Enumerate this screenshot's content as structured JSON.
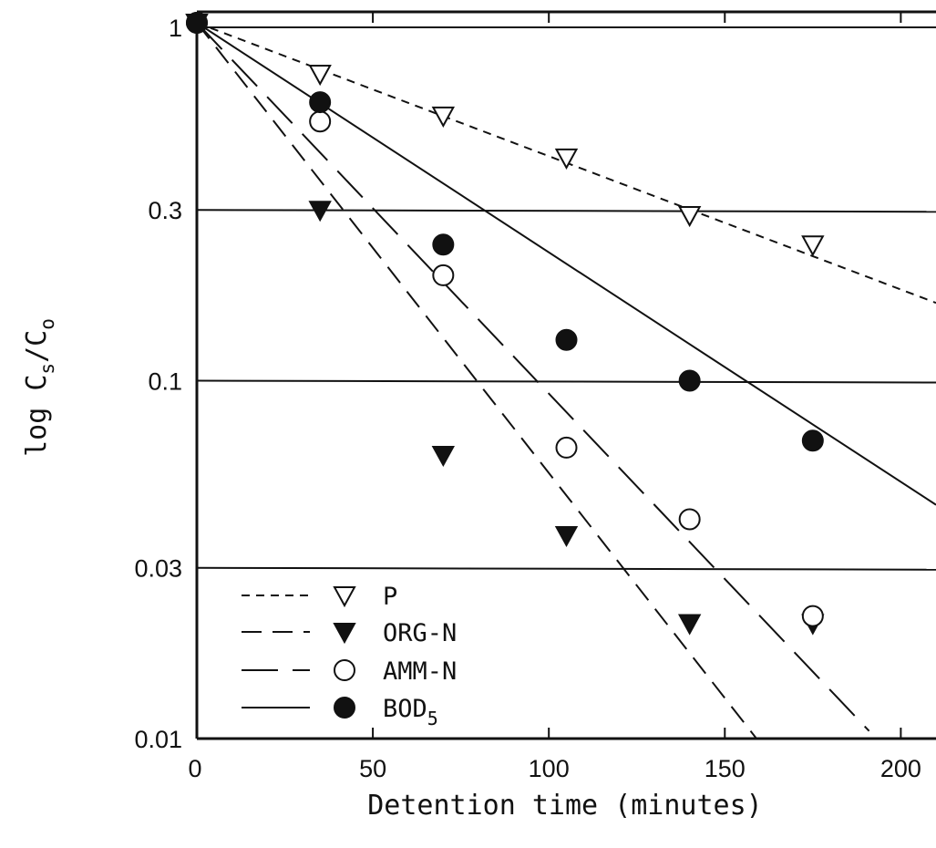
{
  "chart_data": {
    "type": "scatter",
    "xlabel": "Detention time (minutes)",
    "ylabel_main": "log C",
    "ylabel_sub_s": "s",
    "ylabel_slash": "/C",
    "ylabel_sub_o": "o",
    "xlim": [
      0,
      210
    ],
    "ylim": [
      0.01,
      1
    ],
    "y_scale": "log",
    "x_ticks": [
      {
        "value": 0,
        "label": "0"
      },
      {
        "value": 50,
        "label": "50"
      },
      {
        "value": 100,
        "label": "100"
      },
      {
        "value": 150,
        "label": "150"
      },
      {
        "value": 200,
        "label": "200"
      }
    ],
    "y_ticks": [
      {
        "value": 1,
        "label": "1"
      },
      {
        "value": 0.3,
        "label": "0.3"
      },
      {
        "value": 0.1,
        "label": "0.1"
      },
      {
        "value": 0.03,
        "label": "0.03"
      },
      {
        "value": 0.01,
        "label": "0.01"
      }
    ],
    "gridlines_y": [
      1,
      0.3,
      0.1,
      0.03
    ],
    "legend_position": "bottom-left",
    "series": [
      {
        "key": "p",
        "name": "P",
        "marker": "triangle-down-open",
        "line_style": "short-dash",
        "x": [
          0,
          35,
          70,
          105,
          140,
          175
        ],
        "y": [
          1,
          0.72,
          0.55,
          0.42,
          0.29,
          0.24
        ],
        "fit": [
          [
            0,
            1
          ],
          [
            210,
            0.165
          ]
        ]
      },
      {
        "key": "orgn",
        "name": "ORG-N",
        "marker": "triangle-down-filled",
        "line_style": "medium-dash",
        "x": [
          0,
          35,
          70,
          105,
          140,
          175
        ],
        "y": [
          1,
          0.3,
          0.062,
          0.037,
          0.021,
          0.021
        ],
        "fit": [
          [
            0,
            1
          ],
          [
            159,
            0.01
          ]
        ]
      },
      {
        "key": "ammn",
        "name": "AMM-N",
        "marker": "circle-open",
        "line_style": "long-dash",
        "x": [
          0,
          35,
          70,
          105,
          140,
          175
        ],
        "y": [
          1,
          0.53,
          0.197,
          0.065,
          0.041,
          0.022
        ],
        "fit": [
          [
            0,
            1
          ],
          [
            191,
            0.0105
          ]
        ]
      },
      {
        "key": "bod",
        "name": "BOD",
        "name_sub": "5",
        "marker": "circle-filled",
        "line_style": "solid",
        "x": [
          0,
          35,
          70,
          105,
          140,
          175
        ],
        "y": [
          1,
          0.6,
          0.24,
          0.13,
          0.1,
          0.068
        ],
        "fit": [
          [
            0,
            1
          ],
          [
            210,
            0.045
          ]
        ]
      }
    ]
  }
}
